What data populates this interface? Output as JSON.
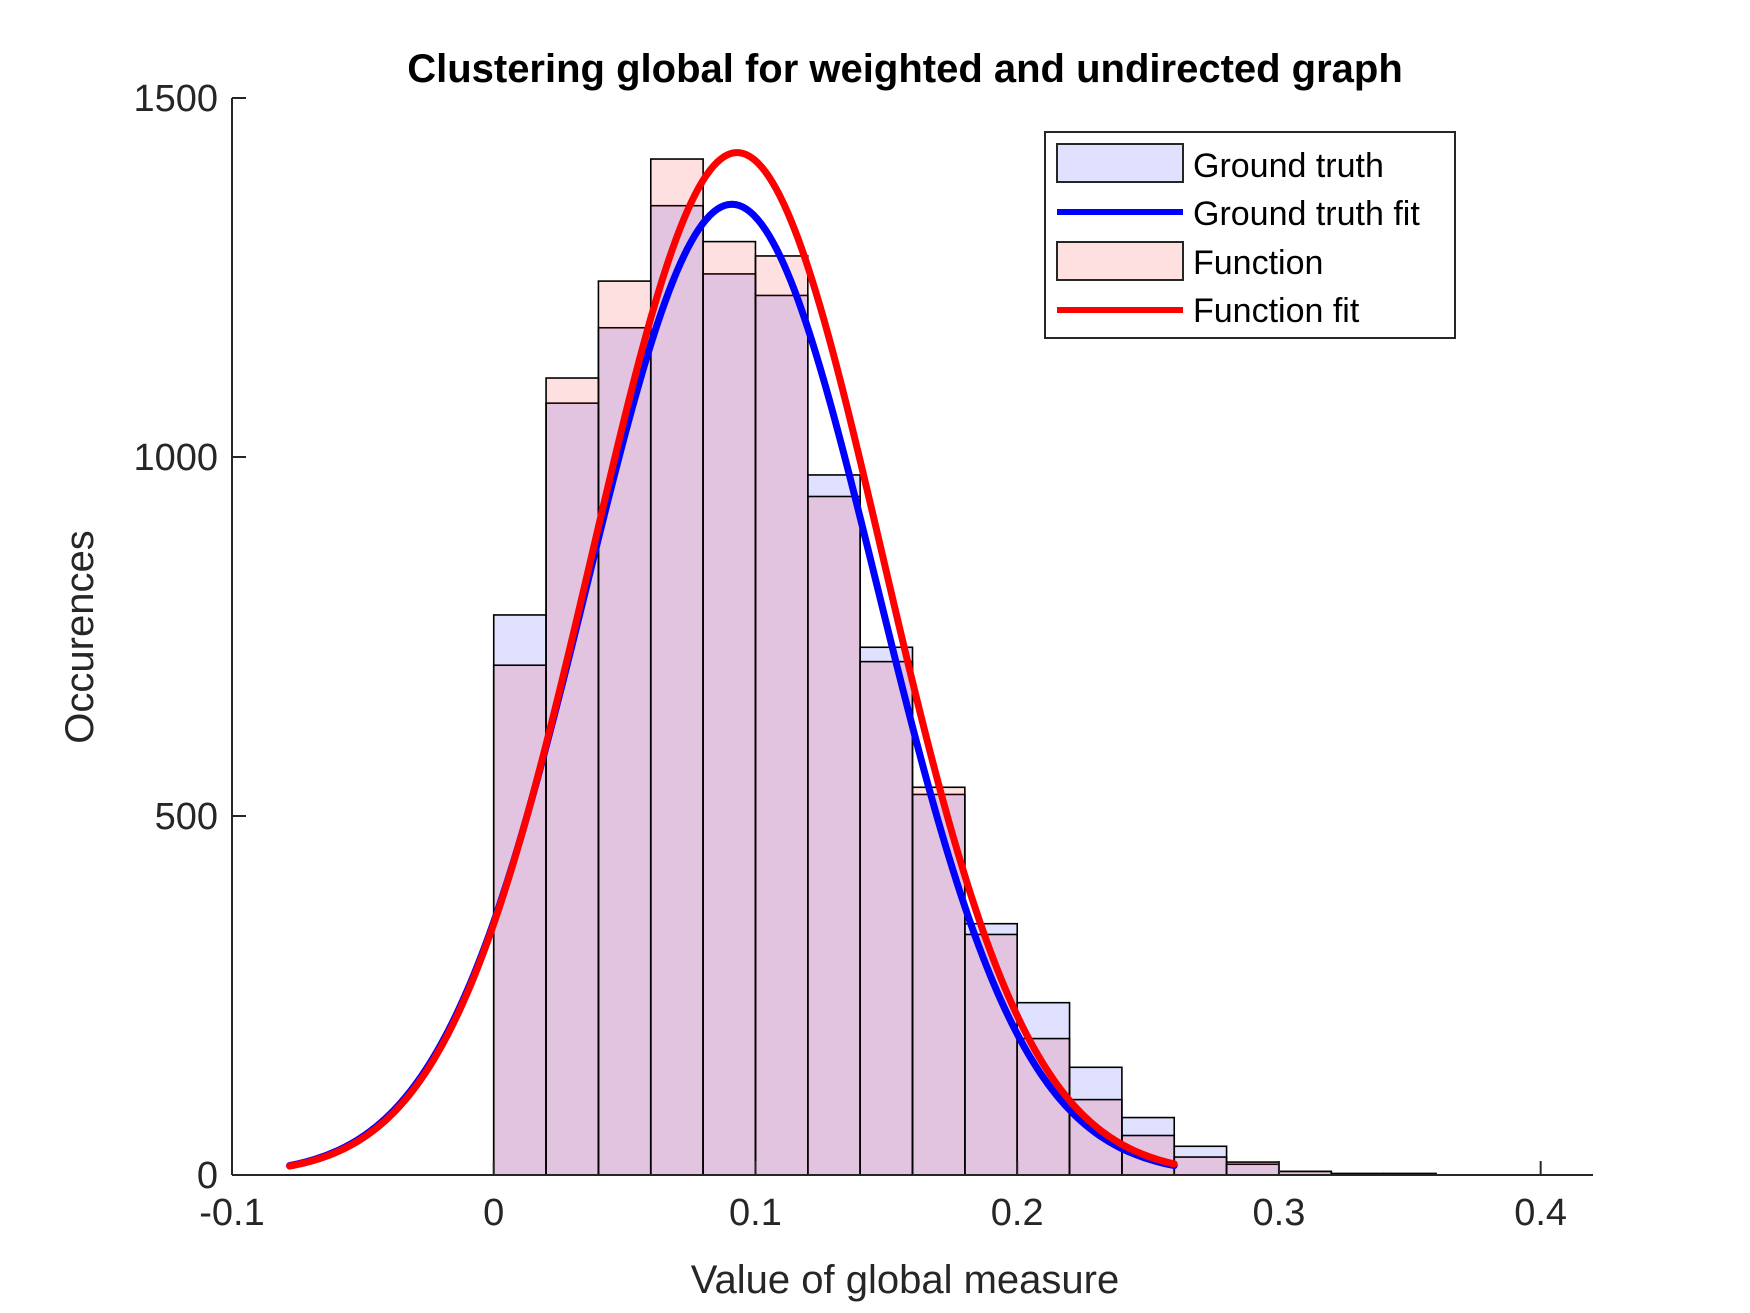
{
  "chart_data": {
    "type": "bar",
    "title": "Clustering global for weighted and undirected graph",
    "xlabel": "Value of global measure",
    "ylabel": "Occurences",
    "xlim": [
      -0.1,
      0.42
    ],
    "ylim": [
      0,
      1500
    ],
    "xticks": [
      -0.1,
      0,
      0.1,
      0.2,
      0.3,
      0.4
    ],
    "xtick_labels": [
      "-0.1",
      "0",
      "0.1",
      "0.2",
      "0.3",
      "0.4"
    ],
    "yticks": [
      0,
      500,
      1000,
      1500
    ],
    "ytick_labels": [
      "0",
      "500",
      "1000",
      "1500"
    ],
    "grid": false,
    "legend_position": "top-right",
    "series": [
      {
        "name": "Ground truth",
        "kind": "histogram",
        "color": "#0000ff",
        "bins": [
          {
            "x0": 0.0,
            "x1": 0.02,
            "count": 780
          },
          {
            "x0": 0.02,
            "x1": 0.04,
            "count": 1075
          },
          {
            "x0": 0.04,
            "x1": 0.06,
            "count": 1180
          },
          {
            "x0": 0.06,
            "x1": 0.08,
            "count": 1350
          },
          {
            "x0": 0.08,
            "x1": 0.1,
            "count": 1255
          },
          {
            "x0": 0.1,
            "x1": 0.12,
            "count": 1225
          },
          {
            "x0": 0.12,
            "x1": 0.14,
            "count": 975
          },
          {
            "x0": 0.14,
            "x1": 0.16,
            "count": 735
          },
          {
            "x0": 0.16,
            "x1": 0.18,
            "count": 530
          },
          {
            "x0": 0.18,
            "x1": 0.2,
            "count": 350
          },
          {
            "x0": 0.2,
            "x1": 0.22,
            "count": 240
          },
          {
            "x0": 0.22,
            "x1": 0.24,
            "count": 150
          },
          {
            "x0": 0.24,
            "x1": 0.26,
            "count": 80
          },
          {
            "x0": 0.26,
            "x1": 0.28,
            "count": 40
          },
          {
            "x0": 0.28,
            "x1": 0.3,
            "count": 15
          },
          {
            "x0": 0.3,
            "x1": 0.32,
            "count": 5
          },
          {
            "x0": 0.32,
            "x1": 0.34,
            "count": 2
          },
          {
            "x0": 0.34,
            "x1": 0.36,
            "count": 2
          }
        ]
      },
      {
        "name": "Ground truth fit",
        "kind": "normal-fit",
        "color": "#0000ff",
        "mu": 0.091,
        "peak": 1352,
        "x_range": [
          -0.078,
          0.26
        ],
        "sigma": 0.0555
      },
      {
        "name": "Function",
        "kind": "histogram",
        "color": "#ff0000",
        "bins": [
          {
            "x0": 0.0,
            "x1": 0.02,
            "count": 710
          },
          {
            "x0": 0.02,
            "x1": 0.04,
            "count": 1110
          },
          {
            "x0": 0.04,
            "x1": 0.06,
            "count": 1245
          },
          {
            "x0": 0.06,
            "x1": 0.08,
            "count": 1415
          },
          {
            "x0": 0.08,
            "x1": 0.1,
            "count": 1300
          },
          {
            "x0": 0.1,
            "x1": 0.12,
            "count": 1280
          },
          {
            "x0": 0.12,
            "x1": 0.14,
            "count": 945
          },
          {
            "x0": 0.14,
            "x1": 0.16,
            "count": 715
          },
          {
            "x0": 0.16,
            "x1": 0.18,
            "count": 540
          },
          {
            "x0": 0.18,
            "x1": 0.2,
            "count": 335
          },
          {
            "x0": 0.2,
            "x1": 0.22,
            "count": 190
          },
          {
            "x0": 0.22,
            "x1": 0.24,
            "count": 105
          },
          {
            "x0": 0.24,
            "x1": 0.26,
            "count": 55
          },
          {
            "x0": 0.26,
            "x1": 0.28,
            "count": 25
          },
          {
            "x0": 0.28,
            "x1": 0.3,
            "count": 18
          },
          {
            "x0": 0.3,
            "x1": 0.32,
            "count": 5
          },
          {
            "x0": 0.32,
            "x1": 0.34,
            "count": 2
          },
          {
            "x0": 0.34,
            "x1": 0.36,
            "count": 2
          }
        ]
      },
      {
        "name": "Function fit",
        "kind": "normal-fit",
        "color": "#ff0000",
        "mu": 0.093,
        "peak": 1424,
        "x_range": [
          -0.078,
          0.26
        ],
        "sigma": 0.0555
      }
    ]
  }
}
